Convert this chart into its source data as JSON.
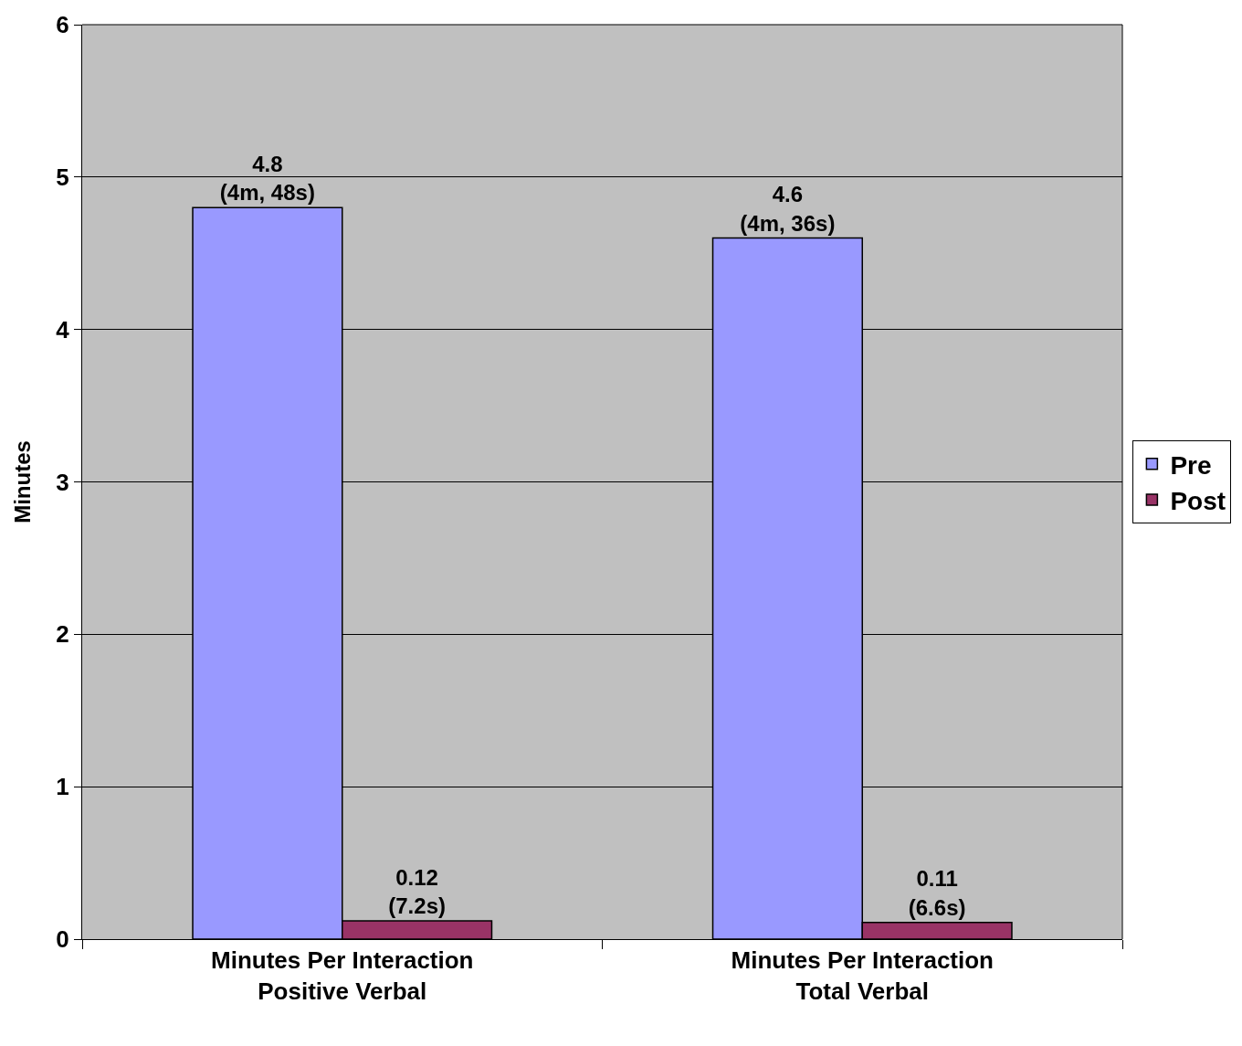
{
  "chart_data": {
    "type": "bar",
    "ylabel": "Minutes",
    "categories": [
      "Minutes Per Interaction\nPositive Verbal",
      "Minutes Per Interaction\nTotal Verbal"
    ],
    "series": [
      {
        "name": "Pre",
        "color": "#9999ff",
        "values": [
          4.8,
          4.6
        ],
        "value_labels": [
          "4.8\n(4m, 48s)",
          "4.6\n(4m, 36s)"
        ]
      },
      {
        "name": "Post",
        "color": "#993366",
        "values": [
          0.12,
          0.11
        ],
        "value_labels": [
          "0.12\n(7.2s)",
          "0.11\n(6.6s)"
        ]
      }
    ],
    "ylim": [
      0,
      6
    ],
    "yticks": [
      0,
      1,
      2,
      3,
      4,
      5,
      6
    ],
    "grid": "y",
    "legend": "right"
  }
}
